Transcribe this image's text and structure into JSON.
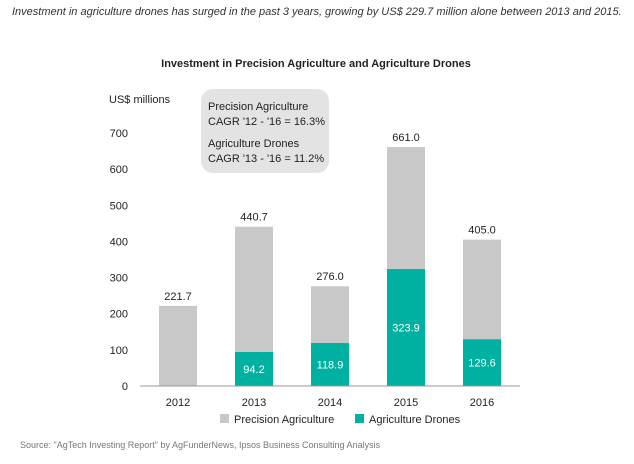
{
  "caption": "Investment in agriculture drones has surged in the past 3 years, growing by US$ 229.7 million alone between 2013 and 2015.",
  "source": "Source: \"AgTech Investing Report\" by AgFunderNews, Ipsos Business Consulting Analysis",
  "colors": {
    "precision": "#c8c8c8",
    "drones": "#00b0a0",
    "callout_bg": "#e3e3e3",
    "axis": "#999999"
  },
  "chart_data": {
    "type": "bar",
    "stacked": true,
    "title": "Investment in Precision Agriculture and Agriculture Drones",
    "ylabel": "US$ millions",
    "xlabel": "",
    "ylim": [
      0,
      700
    ],
    "yticks": [
      0,
      100,
      200,
      300,
      400,
      500,
      600,
      700
    ],
    "categories": [
      "2012",
      "2013",
      "2014",
      "2015",
      "2016"
    ],
    "totals": [
      "221.7",
      "440.7",
      "276.0",
      "661.0",
      "405.0"
    ],
    "series": [
      {
        "name": "Precision Agriculture",
        "values": [
          221.7,
          346.5,
          157.1,
          337.1,
          275.4
        ]
      },
      {
        "name": "Agriculture Drones",
        "values": [
          0,
          94.2,
          118.9,
          323.9,
          129.6
        ],
        "labels": [
          "",
          "94.2",
          "118.9",
          "323.9",
          "129.6"
        ]
      }
    ],
    "annotation": {
      "line1": "Precision Agriculture",
      "line2": "CAGR '12 - '16 = 16.3%",
      "line3": "Agriculture Drones",
      "line4": "CAGR '13 - '16 = 11.2%"
    },
    "legend_position": "bottom",
    "grid": false
  }
}
